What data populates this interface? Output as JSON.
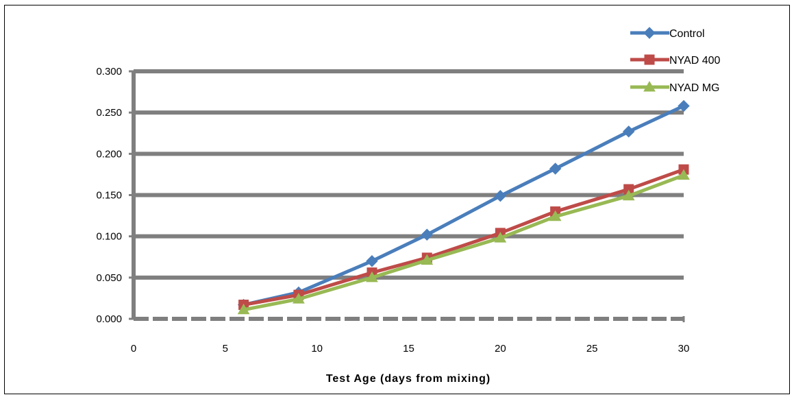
{
  "chart_data": {
    "type": "line",
    "title": "",
    "xlabel": "Test Age (days from mixing)",
    "ylabel": "",
    "xlim": [
      0,
      30
    ],
    "ylim": [
      0,
      0.3
    ],
    "x_ticks": [
      "0",
      "5",
      "10",
      "15",
      "20",
      "25",
      "30"
    ],
    "y_ticks": [
      "0.000",
      "0.050",
      "0.100",
      "0.150",
      "0.200",
      "0.250",
      "0.300"
    ],
    "grid": true,
    "legend_position": "top-right",
    "x": [
      6,
      9,
      13,
      16,
      20,
      23,
      27,
      30
    ],
    "series": [
      {
        "name": "Control",
        "color": "#4a7ebb",
        "marker": "diamond",
        "values": [
          0.017,
          0.032,
          0.07,
          0.102,
          0.149,
          0.182,
          0.227,
          0.258
        ]
      },
      {
        "name": "NYAD 400",
        "color": "#be4b48",
        "marker": "square",
        "values": [
          0.017,
          0.029,
          0.056,
          0.074,
          0.104,
          0.13,
          0.157,
          0.181
        ]
      },
      {
        "name": "NYAD MG",
        "color": "#98b954",
        "marker": "triangle",
        "values": [
          0.011,
          0.024,
          0.05,
          0.071,
          0.098,
          0.124,
          0.149,
          0.174
        ]
      }
    ]
  }
}
